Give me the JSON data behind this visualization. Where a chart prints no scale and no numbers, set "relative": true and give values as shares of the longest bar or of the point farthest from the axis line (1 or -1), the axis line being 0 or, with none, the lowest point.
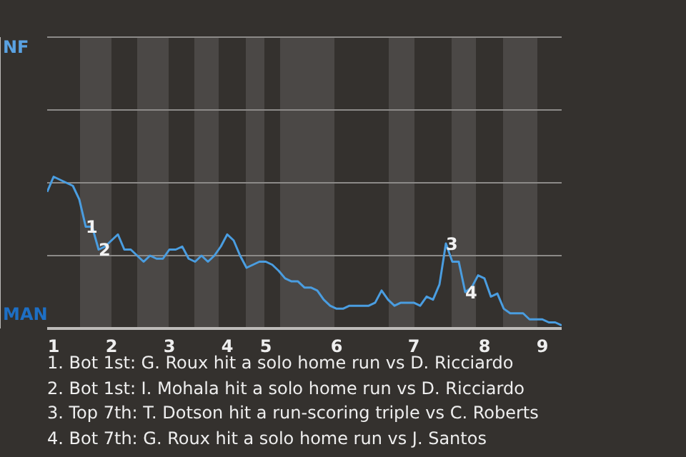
{
  "chart_data": {
    "type": "line",
    "categories": [
      null,
      "1",
      null,
      null,
      null,
      null,
      null,
      null,
      null,
      null,
      "2",
      null,
      null,
      null,
      null,
      null,
      null,
      null,
      null,
      "3",
      null,
      null,
      null,
      null,
      null,
      null,
      null,
      null,
      "4",
      null,
      null,
      null,
      null,
      null,
      "5",
      null,
      null,
      null,
      null,
      null,
      null,
      null,
      null,
      null,
      null,
      "6",
      null,
      null,
      null,
      null,
      null,
      null,
      null,
      null,
      null,
      null,
      null,
      "7",
      null,
      null,
      null,
      null,
      null,
      null,
      null,
      null,
      null,
      null,
      "8",
      null,
      null,
      null,
      null,
      null,
      null,
      null,
      null,
      "9",
      null,
      null,
      null
    ],
    "values": [
      0.9,
      1,
      0.98,
      0.96,
      0.94,
      0.85,
      0.67,
      0.67,
      0.52,
      0.54,
      0.58,
      0.62,
      0.52,
      0.52,
      0.48,
      0.44,
      0.48,
      0.46,
      0.46,
      0.52,
      0.52,
      0.54,
      0.46,
      0.44,
      0.48,
      0.44,
      0.48,
      0.54,
      0.62,
      0.58,
      0.48,
      0.4,
      0.42,
      0.44,
      0.44,
      0.42,
      0.38,
      0.33,
      0.31,
      0.31,
      0.27,
      0.27,
      0.25,
      0.19,
      0.15,
      0.13,
      0.13,
      0.15,
      0.15,
      0.15,
      0.15,
      0.17,
      0.25,
      0.19,
      0.15,
      0.17,
      0.17,
      0.17,
      0.15,
      0.21,
      0.19,
      0.29,
      0.56,
      0.44,
      0.44,
      0.24,
      0.27,
      0.35,
      0.33,
      0.21,
      0.23,
      0.13,
      0.1,
      0.1,
      0.1,
      0.06,
      0.06,
      0.06,
      0.04,
      0.04,
      0.02
    ],
    "relative": true,
    "color": "#4a9de0",
    "ref_lines": [
      {
        "axis": "y",
        "value": 0.48,
        "color": "#8c8a88"
      },
      {
        "axis": "y",
        "value": 0.96,
        "color": "#8c8a88"
      },
      {
        "axis": "y",
        "value": 1.44,
        "color": "#8c8a88"
      },
      {
        "axis": "y",
        "value": 1.92,
        "color": "#8c8a88"
      }
    ],
    "annotations": [
      "NF",
      "MAN",
      {
        "text": "1",
        "y": 0.67
      },
      {
        "text": "2",
        "y": 0.52
      },
      {
        "text": "3",
        "y": 0.56
      },
      {
        "text": "4",
        "y": 0.24
      },
      "1. Bot 1st: G. Roux hit a solo home run vs D. Ricciardo",
      "2. Bot 1st: I. Mohala hit a solo home run vs D. Ricciardo",
      "3. Top 7th: T. Dotson hit a run-scoring triple vs C. Roberts",
      "4. Bot 7th: G. Roux hit a solo home run vs J. Santos"
    ],
    "marker": "none",
    "line_style": "solid"
  }
}
